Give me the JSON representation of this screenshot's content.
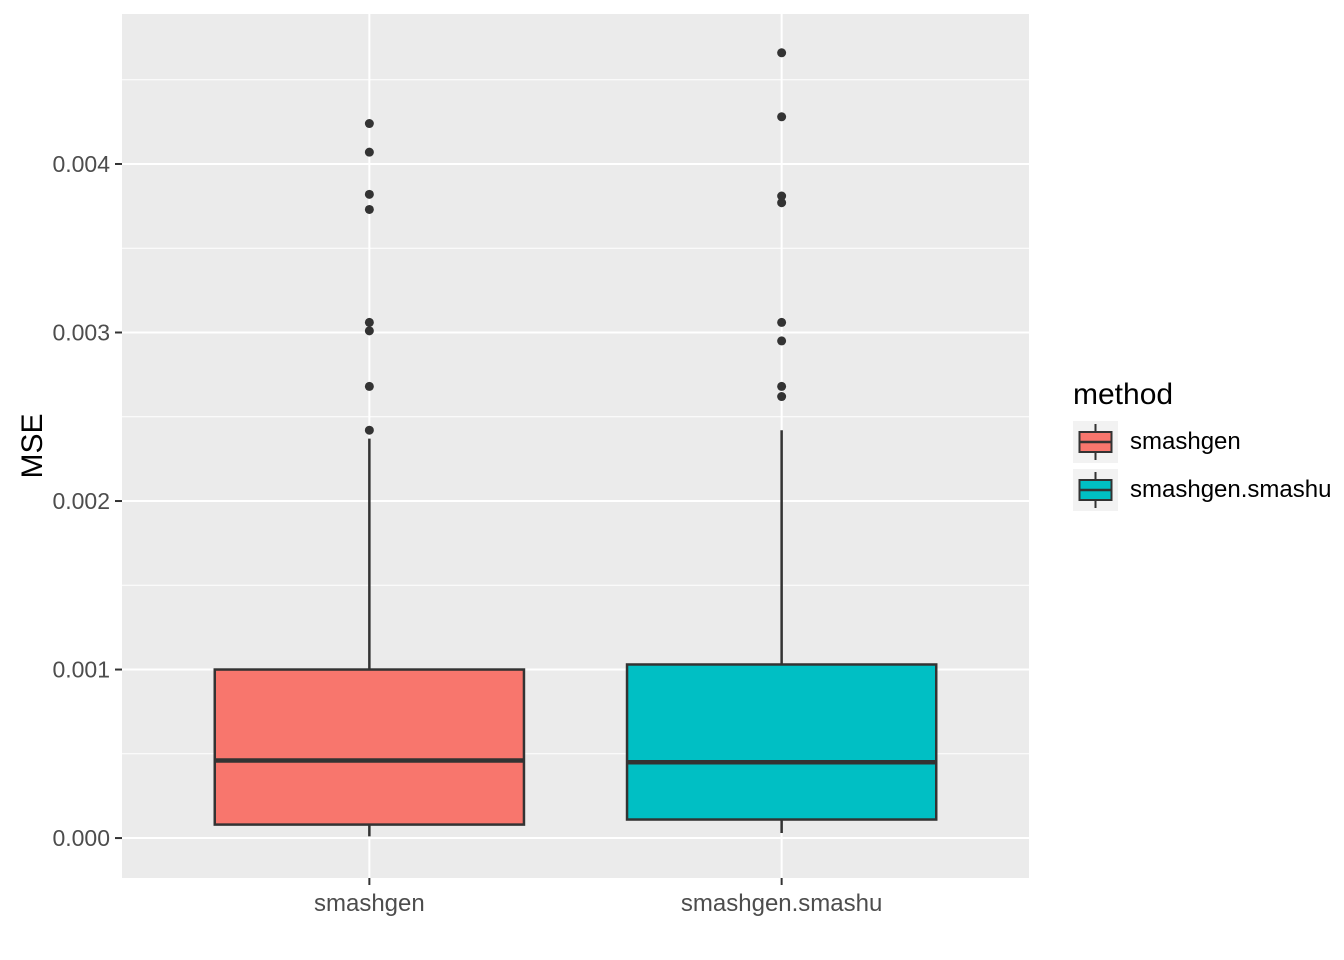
{
  "chart_data": {
    "type": "boxplot",
    "title": "",
    "xlabel": "",
    "ylabel": "MSE",
    "legend_title": "method",
    "legend_position": "right",
    "grid": true,
    "categories": [
      "smashgen",
      "smashgen.smashu"
    ],
    "y_tick_values": [
      0.0,
      0.001,
      0.002,
      0.003,
      0.004
    ],
    "y_tick_labels": [
      "0.000",
      "0.001",
      "0.002",
      "0.003",
      "0.004"
    ],
    "y_minor_tick_values": [
      0.0005,
      0.0015,
      0.0025,
      0.0035,
      0.0045
    ],
    "ylim": [
      -0.000237,
      0.00489
    ],
    "series": [
      {
        "name": "smashgen",
        "fill": "#F8766D",
        "stats": {
          "whisker_low": 1e-05,
          "q1": 8e-05,
          "median": 0.00046,
          "q3": 0.001,
          "whisker_high": 0.00237
        },
        "outliers": [
          0.00242,
          0.00268,
          0.00301,
          0.00306,
          0.00373,
          0.00382,
          0.00407,
          0.00424
        ]
      },
      {
        "name": "smashgen.smashu",
        "fill": "#00BFC4",
        "stats": {
          "whisker_low": 3e-05,
          "q1": 0.00011,
          "median": 0.00045,
          "q3": 0.00103,
          "whisker_high": 0.00242
        },
        "outliers": [
          0.00262,
          0.00268,
          0.00295,
          0.00306,
          0.00377,
          0.00381,
          0.00428,
          0.00466
        ]
      }
    ],
    "colors": {
      "page_bg": "#FFFFFF",
      "panel_bg": "#EBEBEB",
      "grid": "#FFFFFF",
      "box_stroke": "#333333",
      "axis_text": "#4D4D4D",
      "title_text": "#000000",
      "legend_key_bg": "#F2F2F2"
    }
  }
}
